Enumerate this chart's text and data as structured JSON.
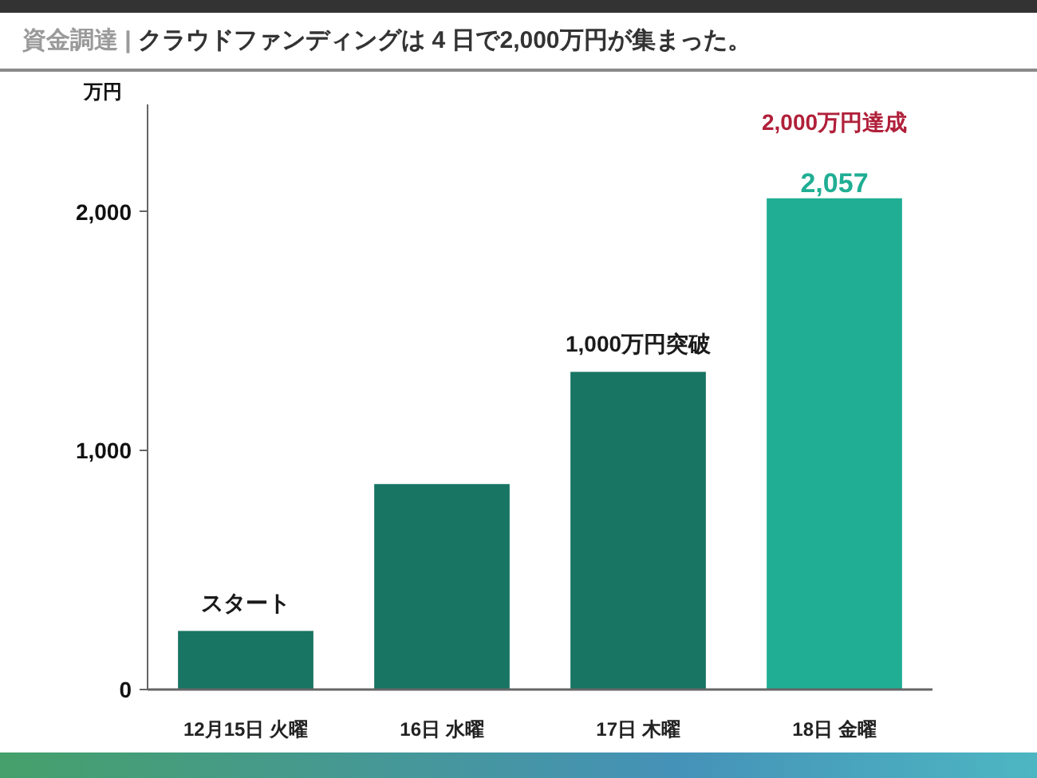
{
  "chart_data": {
    "type": "bar",
    "title": "クラウドファンディングは 4 日で2,000万円が集まった。",
    "subtitle": "資金調達 |",
    "ylabel": "万円",
    "categories": [
      "12月15日 火曜",
      "16日 水曜",
      "17日 木曜",
      "18日 金曜"
    ],
    "values": [
      245,
      860,
      1330,
      2057
    ],
    "colors": [
      "#187463",
      "#187463",
      "#187463",
      "#20ae94"
    ],
    "value_labels": [
      null,
      null,
      null,
      "2,057"
    ],
    "ylim": [
      0,
      2450
    ],
    "yticks": [
      0,
      {
        "value": 1000,
        "label": "1,000"
      },
      {
        "value": 2000,
        "label": "2,000"
      }
    ],
    "annotations": [
      {
        "text": "スタート",
        "x": "12月15日 火曜",
        "y": 245
      },
      {
        "text": "1,000万円突破",
        "x": "17日 木曜",
        "y": 1330
      },
      {
        "text": "2,000万円達成",
        "x": "18日 金曜",
        "y": 2057
      }
    ]
  }
}
